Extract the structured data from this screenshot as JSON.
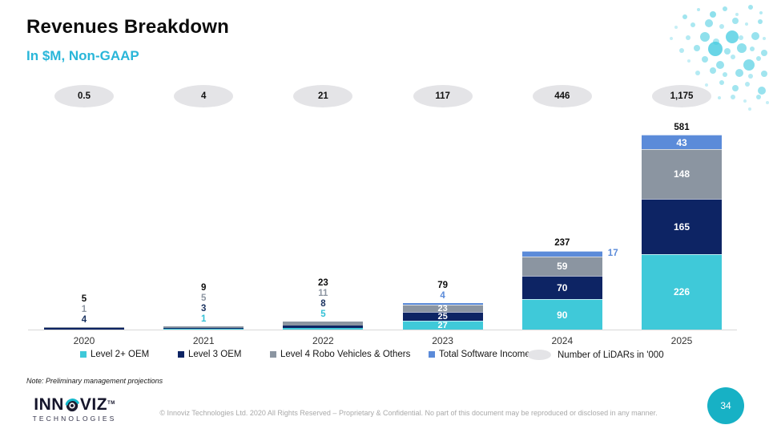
{
  "slide": {
    "title": "Revenues Breakdown",
    "subtitle": "In $M, Non-GAAP",
    "note": "Note: Preliminary management projections",
    "footer": "© Innoviz Technologies Ltd. 2020 All Rights Reserved – Proprietary & Confidential. No part of this document may be reproduced or disclosed in any manner.",
    "page_number": "34",
    "logo": {
      "line1_left": "INN",
      "line1_right": "VIZ",
      "tm": "TM",
      "line2": "TECHNOLOGIES"
    }
  },
  "colors": {
    "accent_cyan": "#29b6d9",
    "level2_cyan": "#3fc9d9",
    "level3_navy": "#0d2464",
    "level4_gray": "#8b95a1",
    "software_blue": "#5b8bd9",
    "ellipse_gray": "#e4e4e7",
    "total_label": "#0d0d0d",
    "badge_teal": "#17b1c5"
  },
  "chart_data": {
    "type": "bar",
    "stacked": true,
    "title": "Revenues Breakdown",
    "subtitle": "In $M, Non-GAAP",
    "unit": "$M",
    "categories": [
      "2020",
      "2021",
      "2022",
      "2023",
      "2024",
      "2025"
    ],
    "series": [
      {
        "name": "Level 2+ OEM",
        "color": "#3fc9d9",
        "values": [
          0,
          1,
          5,
          27,
          90,
          226
        ]
      },
      {
        "name": "Level 3 OEM",
        "color": "#0d2464",
        "values": [
          4,
          3,
          8,
          25,
          70,
          165
        ]
      },
      {
        "name": "Level 4 Robo Vehicles & Others",
        "color": "#8b95a1",
        "values": [
          1,
          5,
          11,
          23,
          59,
          148
        ]
      },
      {
        "name": "Total Software Income",
        "color": "#5b8bd9",
        "values": [
          0,
          0,
          0,
          4,
          17,
          43
        ]
      }
    ],
    "totals": [
      "5",
      "9",
      "23",
      "79",
      "237",
      "581"
    ],
    "lidars": {
      "legend_label": "Number of LiDARs in '000",
      "values": [
        "0.5",
        "4",
        "21",
        "117",
        "446",
        "1,175"
      ]
    },
    "legend_position": "bottom",
    "grid": false,
    "ylim": [
      0,
      600
    ],
    "bar_labels": [
      {
        "outside": [
          {
            "text": "5",
            "color": "#0d0d0d"
          },
          {
            "text": "1",
            "color": "#8d96a2"
          },
          {
            "text": "4",
            "color": "#1c3461"
          }
        ],
        "inside": [
          null,
          null,
          null,
          null
        ],
        "side": null
      },
      {
        "outside": [
          {
            "text": "9",
            "color": "#0d0d0d"
          },
          {
            "text": "5",
            "color": "#8d96a2"
          },
          {
            "text": "3",
            "color": "#1c3461"
          },
          {
            "text": "1",
            "color": "#33c1d6"
          }
        ],
        "inside": [
          null,
          null,
          null,
          null
        ],
        "side": null
      },
      {
        "outside": [
          {
            "text": "23",
            "color": "#0d0d0d"
          },
          {
            "text": "11",
            "color": "#8d96a2"
          },
          {
            "text": "8",
            "color": "#1c3461"
          },
          {
            "text": "5",
            "color": "#33c1d6"
          }
        ],
        "inside": [
          null,
          null,
          null,
          null
        ],
        "side": null
      },
      {
        "outside": [
          {
            "text": "79",
            "color": "#0d0d0d"
          },
          {
            "text": "4",
            "color": "#5b8bd9"
          }
        ],
        "inside": [
          "27",
          "25",
          "23",
          null
        ],
        "side": null
      },
      {
        "outside": [
          {
            "text": "237",
            "color": "#0d0d0d"
          }
        ],
        "inside": [
          "90",
          "70",
          "59",
          null
        ],
        "side": {
          "text": "17",
          "color": "#5b8bd9"
        }
      },
      {
        "outside": [
          {
            "text": "581",
            "color": "#0d0d0d"
          }
        ],
        "inside": [
          "226",
          "165",
          "148",
          "43"
        ],
        "side": null
      }
    ]
  }
}
